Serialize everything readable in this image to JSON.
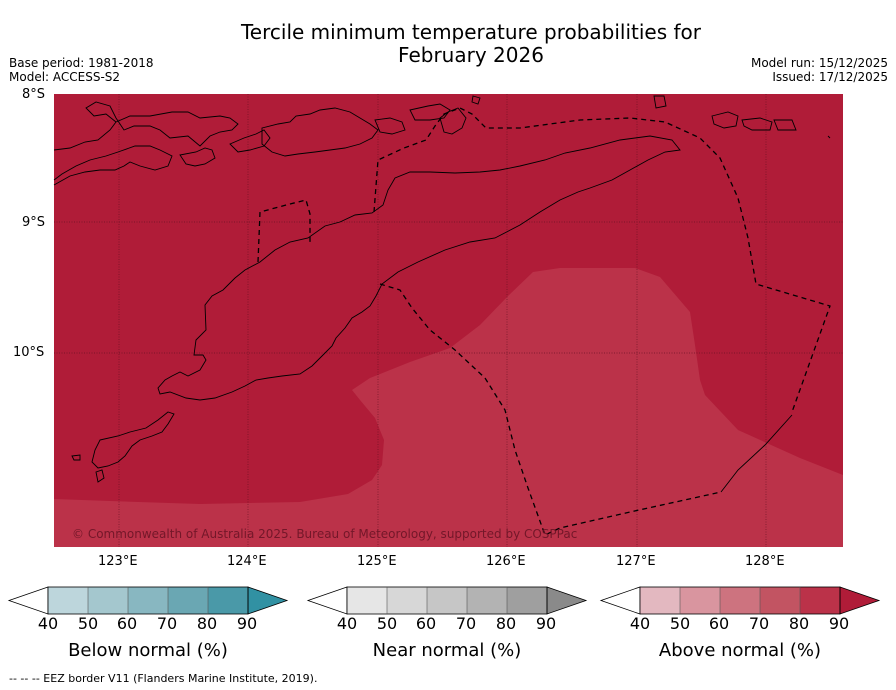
{
  "title": {
    "line1": "Tercile minimum temperature probabilities for",
    "line2": "February 2026"
  },
  "meta": {
    "base_period": "Base period: 1981-2018",
    "model": "Model: ACCESS-S2",
    "model_run": "Model run: 15/12/2025",
    "issued": "Issued: 17/12/2025"
  },
  "map": {
    "lon_range": [
      122.5,
      128.6
    ],
    "lat_range": [
      -11.5,
      -8.0
    ],
    "lat_ticks": [
      {
        "value": -8,
        "label": "8°S"
      },
      {
        "value": -9,
        "label": "9°S"
      },
      {
        "value": -10,
        "label": "10°S"
      }
    ],
    "lon_ticks": [
      {
        "value": 123,
        "label": "123°E"
      },
      {
        "value": 124,
        "label": "124°E"
      },
      {
        "value": 125,
        "label": "125°E"
      },
      {
        "value": 126,
        "label": "126°E"
      },
      {
        "value": 127,
        "label": "127°E"
      },
      {
        "value": 128,
        "label": "128°E"
      }
    ],
    "fields": [
      {
        "category": "Above normal",
        "range": "90-100",
        "color": "#b01c38"
      },
      {
        "category": "Above normal",
        "range": "80-90",
        "color": "#bb3249"
      }
    ],
    "copyright": "© Commonwealth of Australia 2025. Bureau of Meteorology, supported by COSPPac"
  },
  "colorbars": [
    {
      "label": "Below normal (%)",
      "ticks": [
        "40",
        "50",
        "60",
        "70",
        "80",
        "90"
      ],
      "colors": [
        "#bdd6dc",
        "#a4c7ce",
        "#88b7c1",
        "#6aa7b3",
        "#4a99a8",
        "#3191a3"
      ]
    },
    {
      "label": "Near normal (%)",
      "ticks": [
        "40",
        "50",
        "60",
        "70",
        "80",
        "90"
      ],
      "colors": [
        "#e6e6e6",
        "#d7d7d7",
        "#c6c6c6",
        "#b3b3b3",
        "#9f9f9f",
        "#8a8a8a"
      ]
    },
    {
      "label": "Above normal (%)",
      "ticks": [
        "40",
        "50",
        "60",
        "70",
        "80",
        "90"
      ],
      "colors": [
        "#e3b8c0",
        "#d9959f",
        "#cd737f",
        "#c25462",
        "#bb3249",
        "#b01c38"
      ]
    }
  ],
  "footer": {
    "legend_line": "-- -- -- EEZ border V11 (Flanders Marine Institute, 2019)."
  }
}
